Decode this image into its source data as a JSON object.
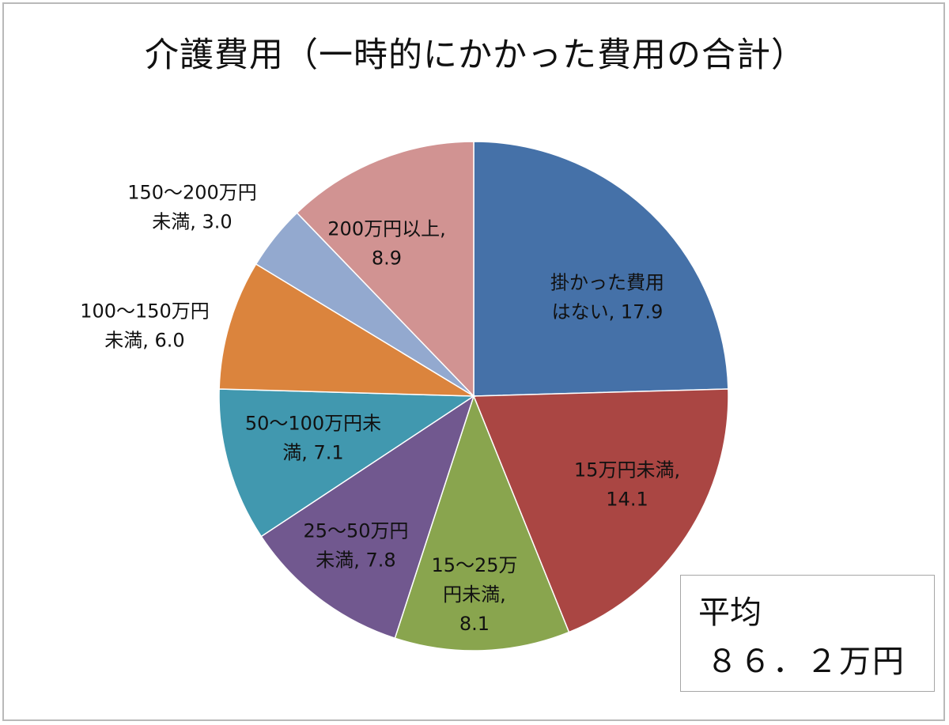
{
  "chart_data": {
    "type": "pie",
    "title": "介護費用（一時的にかかった費用の合計）",
    "start_angle_deg": 0,
    "direction": "clockwise",
    "slices": [
      {
        "label_lines": [
          "掛かった費用",
          "はない, 17.9"
        ],
        "value": 17.9,
        "color": "#4571a8"
      },
      {
        "label_lines": [
          "15万円未満,",
          "14.1"
        ],
        "value": 14.1,
        "color": "#aa4643"
      },
      {
        "label_lines": [
          "15～25万",
          "円未満,",
          "8.1"
        ],
        "value": 8.1,
        "color": "#89a54e"
      },
      {
        "label_lines": [
          "25～50万円",
          "未満, 7.8"
        ],
        "value": 7.8,
        "color": "#71588f"
      },
      {
        "label_lines": [
          "50～100万円未",
          "満, 7.1"
        ],
        "value": 7.1,
        "color": "#4198af"
      },
      {
        "label_lines": [
          "100～150万円",
          "未満, 6.0"
        ],
        "value": 6.0,
        "color": "#db843d"
      },
      {
        "label_lines": [
          "150～200万円",
          "未満, 3.0"
        ],
        "value": 3.0,
        "color": "#93a9cf"
      },
      {
        "label_lines": [
          "200万円以上,",
          "8.9"
        ],
        "value": 8.9,
        "color": "#d19392"
      }
    ]
  },
  "average_box": {
    "label": "平均",
    "value": "８６．２万円"
  }
}
